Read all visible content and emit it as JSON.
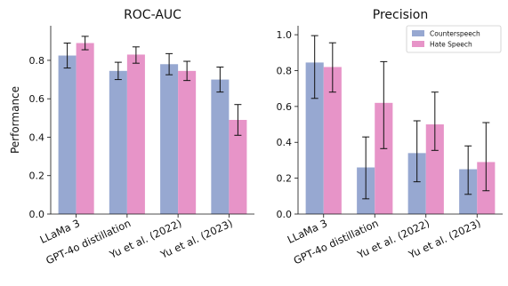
{
  "chart_data": [
    {
      "type": "bar",
      "title": "ROC-AUC",
      "xlabel": "",
      "ylabel": "Performance",
      "ylim": [
        0,
        0.98
      ],
      "yticks": [
        "0.0",
        "0.2",
        "0.4",
        "0.6",
        "0.8"
      ],
      "categories": [
        "LLaMa 3",
        "GPT-4o distillation",
        "Yu et al. (2022)",
        "Yu et al. (2023)"
      ],
      "series": [
        {
          "name": "Counterspeech",
          "color": "#97a8d1",
          "values": [
            0.825,
            0.745,
            0.78,
            0.7
          ],
          "err_low": [
            0.76,
            0.7,
            0.725,
            0.635
          ],
          "err_high": [
            0.89,
            0.79,
            0.835,
            0.765
          ]
        },
        {
          "name": "Hate Speech",
          "color": "#e794c8",
          "values": [
            0.89,
            0.83,
            0.745,
            0.49
          ],
          "err_low": [
            0.855,
            0.785,
            0.695,
            0.41
          ],
          "err_high": [
            0.925,
            0.87,
            0.795,
            0.57
          ]
        }
      ],
      "grid": false,
      "legend": "none"
    },
    {
      "type": "bar",
      "title": "Precision",
      "xlabel": "",
      "ylabel": "",
      "ylim": [
        0,
        1.05
      ],
      "yticks": [
        "0.0",
        "0.2",
        "0.4",
        "0.6",
        "0.8",
        "1.0"
      ],
      "categories": [
        "LLaMa 3",
        "GPT-4o distillation",
        "Yu et al. (2022)",
        "Yu et al. (2023)"
      ],
      "series": [
        {
          "name": "Counterspeech",
          "color": "#97a8d1",
          "values": [
            0.845,
            0.26,
            0.34,
            0.25
          ],
          "err_low": [
            0.645,
            0.085,
            0.18,
            0.11
          ],
          "err_high": [
            0.995,
            0.43,
            0.52,
            0.38
          ]
        },
        {
          "name": "Hate Speech",
          "color": "#e794c8",
          "values": [
            0.82,
            0.62,
            0.5,
            0.29
          ],
          "err_low": [
            0.68,
            0.365,
            0.355,
            0.13
          ],
          "err_high": [
            0.955,
            0.85,
            0.68,
            0.51
          ]
        }
      ],
      "grid": false,
      "legend": "top-right"
    }
  ]
}
